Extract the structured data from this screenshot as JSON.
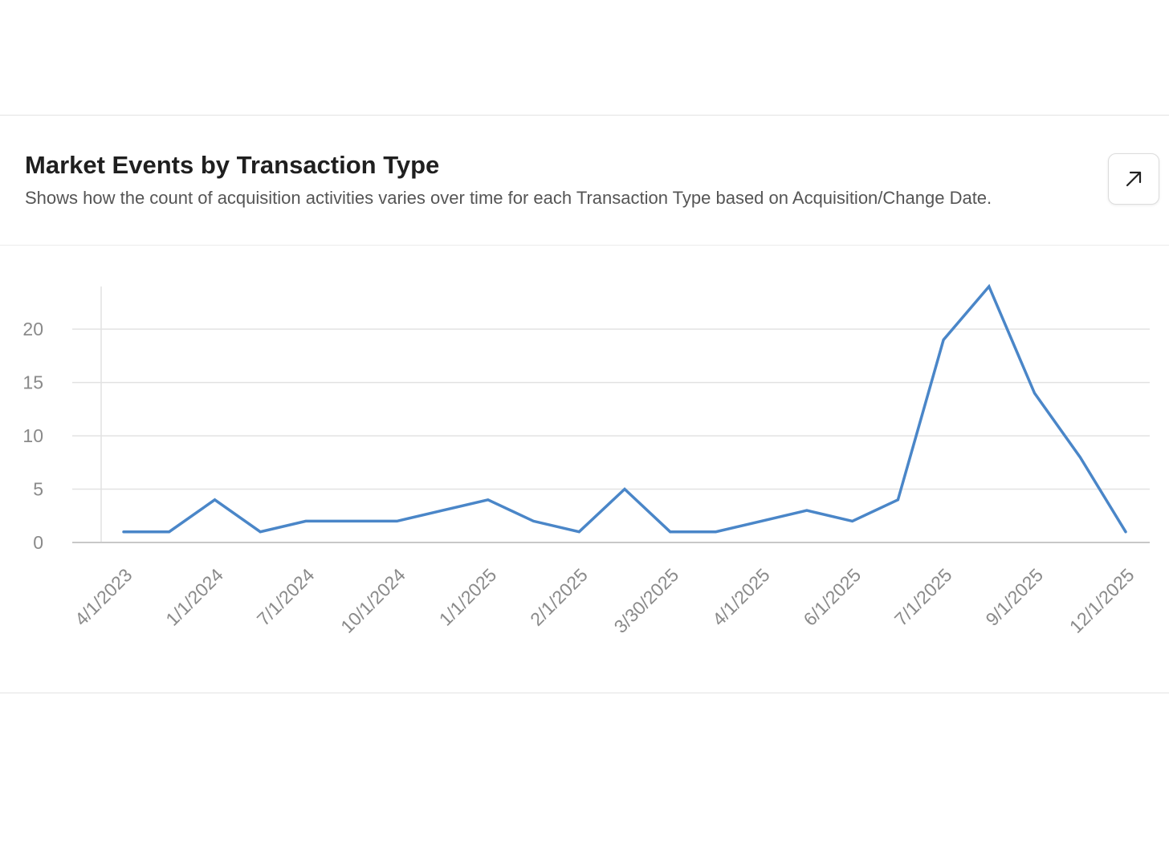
{
  "card": {
    "title": "Market Events by Transaction Type",
    "subtitle": "Shows how the count of acquisition activities varies over time for each Transaction Type based on Acquisition/Change Date.",
    "expand_icon": "arrow-up-right-icon"
  },
  "colors": {
    "line": "#4a86c8",
    "grid": "#e2e2e2",
    "axis": "#c8c8c8",
    "tick_text": "#8a8a8a"
  },
  "chart_data": {
    "type": "line",
    "title": "",
    "xlabel": "",
    "ylabel": "",
    "ylim": [
      0,
      24
    ],
    "yticks": [
      0,
      5,
      10,
      15,
      20
    ],
    "grid": true,
    "x_tick_labels": [
      "4/1/2023",
      "1/1/2024",
      "7/1/2024",
      "10/1/2024",
      "1/1/2025",
      "2/1/2025",
      "3/30/2025",
      "4/1/2025",
      "6/1/2025",
      "7/1/2025",
      "9/1/2025",
      "12/1/2025"
    ],
    "series": [
      {
        "name": "Market Events",
        "values": [
          1,
          1,
          4,
          1,
          2,
          2,
          2,
          3,
          4,
          2,
          1,
          5,
          1,
          1,
          2,
          3,
          2,
          4,
          19,
          24,
          14,
          8,
          1
        ]
      }
    ]
  }
}
